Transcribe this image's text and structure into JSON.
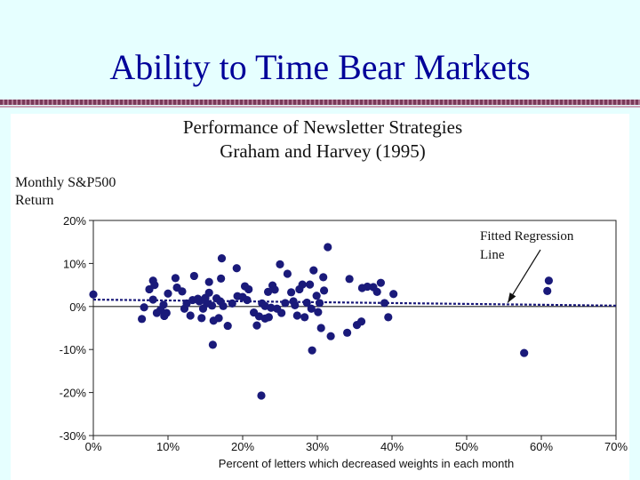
{
  "slide": {
    "title": "Ability to Time Bear Markets"
  },
  "colors": {
    "background": "#e6ffff",
    "title": "#000099",
    "points": "#1a1a7a",
    "regression": "#1a1a7a"
  },
  "chart_data": {
    "type": "scatter",
    "title": "Performance of Newsletter Strategies",
    "subtitle": "Graham and Harvey (1995)",
    "ylabel_line1": "Monthly S&P500",
    "ylabel_line2": "Return",
    "xlabel": "Percent of letters which decreased weights in each month",
    "annotation_line1": "Fitted Regression",
    "annotation_line2": "Line",
    "xlim": [
      0,
      70
    ],
    "ylim": [
      -30,
      20
    ],
    "x_ticks": [
      0,
      10,
      20,
      30,
      40,
      50,
      60,
      70
    ],
    "x_tick_labels": [
      "0%",
      "10%",
      "20%",
      "30%",
      "40%",
      "50%",
      "60%",
      "70%"
    ],
    "y_ticks": [
      20,
      10,
      0,
      -10,
      -20,
      -30
    ],
    "y_tick_labels": [
      "20%",
      "10%",
      "0%",
      "-10%",
      "-20%",
      "-30%"
    ],
    "regression": {
      "x": [
        0,
        70
      ],
      "y": [
        1.6,
        0.2
      ]
    },
    "points": [
      [
        0,
        2.8
      ],
      [
        6.5,
        -2.9
      ],
      [
        6.8,
        -0.2
      ],
      [
        7.5,
        4
      ],
      [
        8,
        6
      ],
      [
        8.2,
        5
      ],
      [
        8,
        1.6
      ],
      [
        8.5,
        -1.5
      ],
      [
        9,
        -0.8
      ],
      [
        9.4,
        0.4
      ],
      [
        9.5,
        -2.2
      ],
      [
        9.8,
        -1.5
      ],
      [
        10,
        3
      ],
      [
        11,
        6.6
      ],
      [
        11.2,
        4.4
      ],
      [
        11.9,
        3.5
      ],
      [
        12.2,
        -0.5
      ],
      [
        12.5,
        0.7
      ],
      [
        13,
        -2.1
      ],
      [
        13.3,
        1.5
      ],
      [
        13.5,
        7.1
      ],
      [
        14,
        1.8
      ],
      [
        14.2,
        1.2
      ],
      [
        14.5,
        -2.7
      ],
      [
        14.7,
        -0.5
      ],
      [
        15,
        2
      ],
      [
        15.2,
        0.7
      ],
      [
        15.5,
        3.2
      ],
      [
        15.5,
        5.7
      ],
      [
        15.9,
        0.2
      ],
      [
        16.1,
        -3.3
      ],
      [
        16,
        -8.9
      ],
      [
        16.5,
        1.9
      ],
      [
        16.8,
        -2.7
      ],
      [
        17,
        1.2
      ],
      [
        17.1,
        6.5
      ],
      [
        17.2,
        11.2
      ],
      [
        17.4,
        0.1
      ],
      [
        18,
        -4.5
      ],
      [
        18.6,
        0.7
      ],
      [
        19.2,
        8.9
      ],
      [
        19.3,
        2.4
      ],
      [
        20,
        2.2
      ],
      [
        20.3,
        4.7
      ],
      [
        20.6,
        1.5
      ],
      [
        20.8,
        4
      ],
      [
        21.5,
        -1.4
      ],
      [
        21.9,
        -4.4
      ],
      [
        22.2,
        -2.3
      ],
      [
        22.5,
        -20.7
      ],
      [
        22.6,
        0.7
      ],
      [
        23,
        0.1
      ],
      [
        23,
        -2.8
      ],
      [
        23.4,
        3.4
      ],
      [
        23.5,
        -2.5
      ],
      [
        23.8,
        -0.3
      ],
      [
        24,
        4.9
      ],
      [
        24.3,
        3.9
      ],
      [
        24.6,
        -0.5
      ],
      [
        25,
        9.8
      ],
      [
        25.2,
        -1.5
      ],
      [
        25.7,
        0.8
      ],
      [
        26,
        7.6
      ],
      [
        26.5,
        3.3
      ],
      [
        26.8,
        1.2
      ],
      [
        27,
        0.3
      ],
      [
        27.3,
        -2.1
      ],
      [
        27.6,
        4
      ],
      [
        28,
        5.1
      ],
      [
        28.3,
        -2.5
      ],
      [
        28.6,
        0.9
      ],
      [
        29,
        5.1
      ],
      [
        29.2,
        -0.5
      ],
      [
        29.3,
        -10.2
      ],
      [
        29.5,
        8.4
      ],
      [
        29.9,
        2.5
      ],
      [
        30.1,
        -1.3
      ],
      [
        30.3,
        0.8
      ],
      [
        30.5,
        -5
      ],
      [
        30.9,
        3.7
      ],
      [
        30.8,
        6.8
      ],
      [
        31.4,
        13.8
      ],
      [
        31.8,
        -6.9
      ],
      [
        34,
        -6.1
      ],
      [
        34.3,
        6.4
      ],
      [
        35.3,
        -4.3
      ],
      [
        35.9,
        -3.5
      ],
      [
        36,
        4.3
      ],
      [
        36.7,
        4.6
      ],
      [
        37.5,
        4.5
      ],
      [
        38,
        3.4
      ],
      [
        38.5,
        5.5
      ],
      [
        39,
        0.8
      ],
      [
        39.5,
        -2.5
      ],
      [
        40.2,
        2.9
      ],
      [
        57.7,
        -10.8
      ],
      [
        61,
        6
      ],
      [
        60.8,
        3.6
      ]
    ]
  }
}
